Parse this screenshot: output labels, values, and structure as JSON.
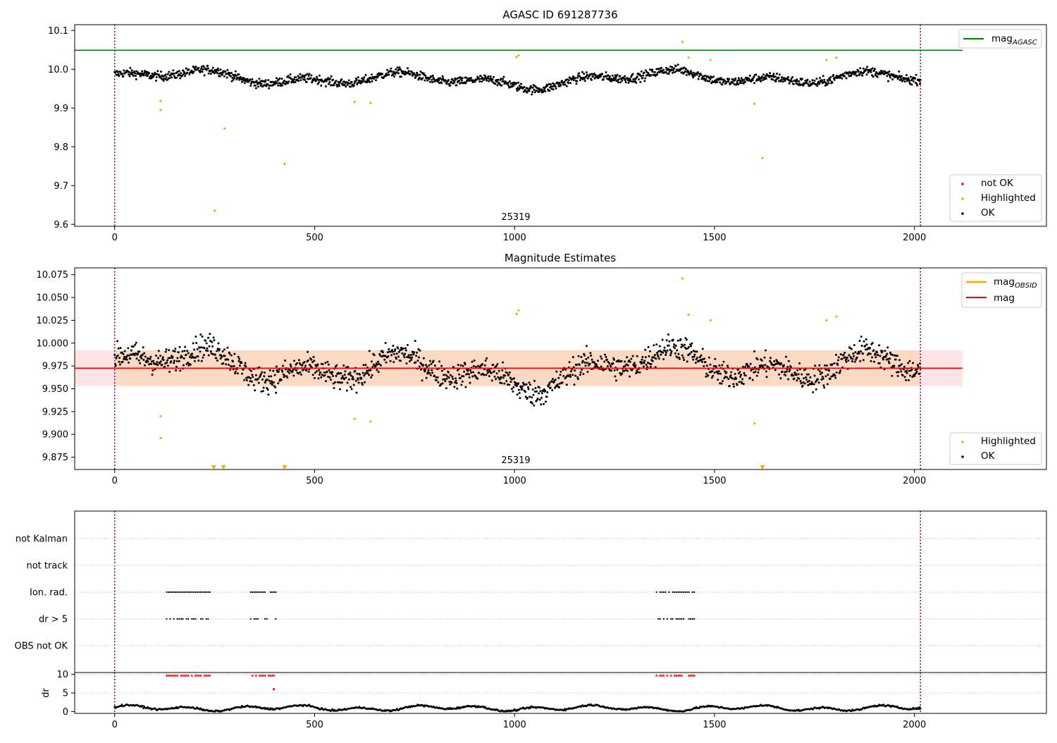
{
  "chart_data": [
    {
      "type": "scatter",
      "title": "AGASC ID 691287736",
      "xlabel": "",
      "ylabel": "",
      "xlim": [
        -100,
        2330
      ],
      "ylim": [
        9.595,
        10.115
      ],
      "xticks": [
        0,
        500,
        1000,
        1500,
        2000
      ],
      "yticks": [
        9.6,
        9.7,
        9.8,
        9.9,
        10.0,
        10.1
      ],
      "ytick_labels": [
        "9.6",
        "9.7",
        "9.8",
        "9.9",
        "10.0",
        "10.1"
      ],
      "vlines": [
        0,
        2015
      ],
      "vline_color": "#800080",
      "annotation": "25319",
      "annotation_x": 1005,
      "hlines": [
        {
          "name": "mag",
          "sub": "AGASC",
          "value": 10.049,
          "x_range": [
            -100,
            2120
          ],
          "color": "#008000"
        }
      ],
      "legend_lines": [
        {
          "name": "mag",
          "sub": "AGASC",
          "color": "#008000"
        }
      ],
      "legend_points": [
        {
          "name": "not OK",
          "color": "#ff0000"
        },
        {
          "name": "Highlighted",
          "color": "#ffa500"
        },
        {
          "name": "OK",
          "color": "#000000"
        }
      ],
      "highlighted_points": [
        [
          115,
          9.918
        ],
        [
          115,
          9.895
        ],
        [
          250,
          9.635
        ],
        [
          275,
          9.847
        ],
        [
          425,
          9.756
        ],
        [
          600,
          9.916
        ],
        [
          640,
          9.913
        ],
        [
          1005,
          10.031
        ],
        [
          1010,
          10.036
        ],
        [
          1420,
          10.071
        ],
        [
          1435,
          10.03
        ],
        [
          1490,
          10.024
        ],
        [
          1600,
          9.911
        ],
        [
          1620,
          9.771
        ],
        [
          1780,
          10.024
        ],
        [
          1805,
          10.03
        ]
      ],
      "ok_series": {
        "n": 1500,
        "x_range": [
          0,
          2015
        ],
        "level": 9.975,
        "scatter": 0.015
      }
    },
    {
      "type": "scatter",
      "title": "Magnitude Estimates",
      "xlabel": "",
      "ylabel": "",
      "xlim": [
        -100,
        2330
      ],
      "ylim": [
        9.8615,
        10.0825
      ],
      "xticks": [
        0,
        500,
        1000,
        1500,
        2000
      ],
      "yticks": [
        9.875,
        9.9,
        9.925,
        9.95,
        9.975,
        10.0,
        10.025,
        10.05,
        10.075
      ],
      "ytick_labels": [
        "9.875",
        "9.900",
        "9.925",
        "9.950",
        "9.975",
        "10.000",
        "10.025",
        "10.050",
        "10.075"
      ],
      "vlines": [
        0,
        2015
      ],
      "annotation": "25319",
      "annotation_x": 1005,
      "mean_mag": 9.9725,
      "band": {
        "low": 9.953,
        "high": 9.992,
        "x_range": [
          -100,
          2120
        ]
      },
      "band_colors": {
        "outer": "#ffe4e6",
        "inner": "#fcd9c3"
      },
      "legend_lines": [
        {
          "name": "mag",
          "sub": "OBSID",
          "color": "#ffa500"
        },
        {
          "name": "mag",
          "sub": "",
          "color": "#ff0000"
        }
      ],
      "legend_points": [
        {
          "name": "Highlighted",
          "color": "#ffa500"
        },
        {
          "name": "OK",
          "color": "#000000"
        }
      ],
      "highlighted_points": [
        [
          115,
          9.92
        ],
        [
          115,
          9.896
        ],
        [
          600,
          9.917
        ],
        [
          640,
          9.914
        ],
        [
          1005,
          10.032
        ],
        [
          1010,
          10.036
        ],
        [
          1420,
          10.071
        ],
        [
          1435,
          10.031
        ],
        [
          1490,
          10.025
        ],
        [
          1600,
          9.912
        ],
        [
          1780,
          10.025
        ],
        [
          1805,
          10.029
        ]
      ],
      "below_range_markers": [
        248,
        272,
        425,
        1620
      ],
      "ok_series": {
        "n": 1500,
        "x_range": [
          0,
          2015
        ],
        "level": 9.972,
        "scatter": 0.018
      }
    },
    {
      "type": "scatter",
      "title": "",
      "categories": [
        "not Kalman",
        "not track",
        "Ion. rad.",
        "dr > 5",
        "OBS not OK"
      ],
      "xlim": [
        -100,
        2330
      ],
      "vlines": [
        0,
        2015
      ],
      "flag_clusters": [
        [
          130,
          240
        ],
        [
          340,
          405
        ],
        [
          1355,
          1450
        ]
      ]
    },
    {
      "type": "scatter",
      "ylabel": "dr",
      "xlim": [
        -100,
        2330
      ],
      "ylim": [
        -0.5,
        10.5
      ],
      "xticks": [
        0,
        500,
        1000,
        1500,
        2000
      ],
      "yticks": [
        0,
        5,
        10
      ],
      "ytick_labels": [
        "0",
        "5",
        "10"
      ],
      "vlines": [
        0,
        2015
      ],
      "flag_clusters": [
        [
          130,
          240
        ],
        [
          340,
          405
        ],
        [
          1355,
          1450
        ]
      ],
      "outlier_points": [
        [
          398,
          6.0
        ]
      ],
      "ok_series": {
        "n": 900,
        "x_range": [
          0,
          2015
        ],
        "level": 0.9,
        "scatter": 0.4
      }
    }
  ]
}
